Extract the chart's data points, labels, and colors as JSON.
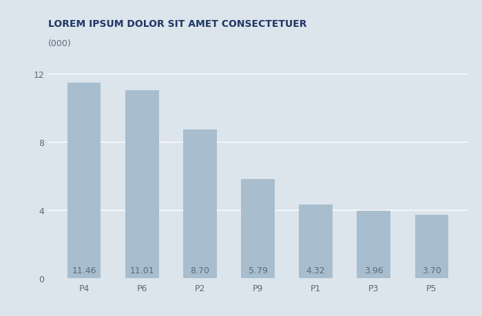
{
  "title": "LOREM IPSUM DOLOR SIT AMET CONSECTETUER",
  "categories": [
    "P4",
    "P6",
    "P2",
    "P9",
    "P1",
    "P3",
    "P5"
  ],
  "values": [
    11.46,
    11.01,
    8.7,
    5.79,
    4.32,
    3.96,
    3.7
  ],
  "bar_color": "#a8bece",
  "background_color": "#dce4ec",
  "ylabel_note": "(000)",
  "yticks": [
    0,
    4,
    8,
    12
  ],
  "ylim": [
    0,
    13
  ],
  "title_color": "#1f3864",
  "title_fontsize": 10,
  "label_fontsize": 9,
  "tick_fontsize": 9,
  "value_label_color": "#5a6a7a",
  "grid_color": "#ffffff",
  "axis_color": "#aab4bc"
}
